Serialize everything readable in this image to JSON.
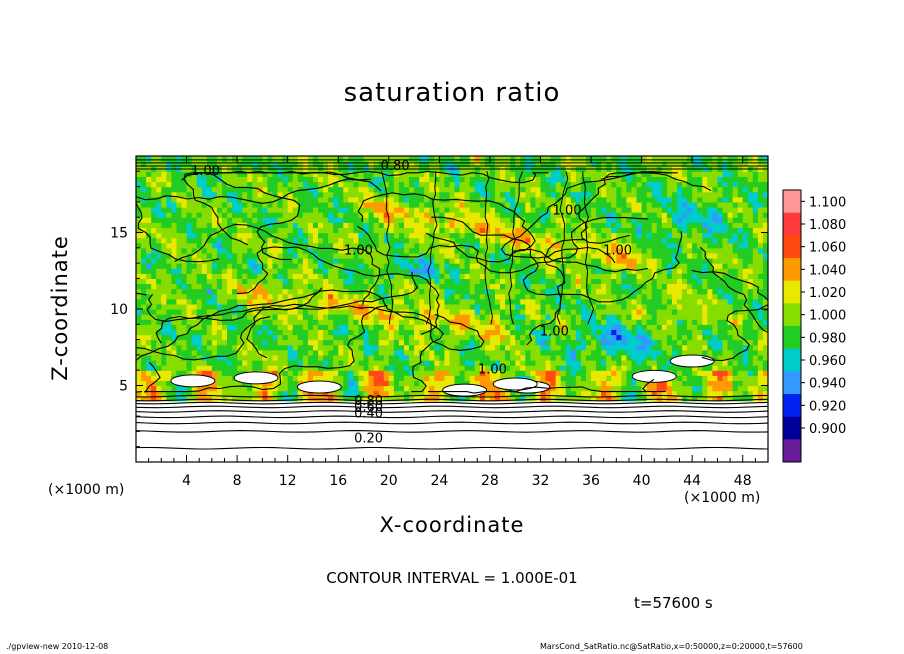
{
  "chart_data": {
    "type": "heatmap",
    "title": "saturation ratio",
    "xlabel": "X-coordinate",
    "ylabel": "Z-coordinate",
    "x_unit": "(×1000 m)",
    "z_unit": "(×1000 m)",
    "xlim": [
      0,
      50
    ],
    "ylim": [
      0,
      20
    ],
    "x_ticks": [
      "4",
      "8",
      "12",
      "16",
      "20",
      "24",
      "28",
      "32",
      "36",
      "40",
      "44",
      "48"
    ],
    "y_ticks": [
      "5",
      "10",
      "15"
    ],
    "colorbar": {
      "levels": [
        "1.100",
        "1.080",
        "1.060",
        "1.040",
        "1.020",
        "1.000",
        "0.980",
        "0.960",
        "0.940",
        "0.920",
        "0.900"
      ],
      "colors": [
        "#ff9999",
        "#ff3a3a",
        "#ff4a10",
        "#ff9900",
        "#e8e800",
        "#88dd00",
        "#22cc22",
        "#00cccc",
        "#3399ff",
        "#0022ee",
        "#000099",
        "#6a1b9a"
      ]
    },
    "contour_labels": [
      "0.80",
      "1.00",
      "1.00",
      "1.00",
      "1.00",
      "1.00",
      "1.00",
      "0.80",
      "0.60",
      "0.40",
      "0.20"
    ],
    "grid": false
  },
  "annotations": {
    "contour_interval": "CONTOUR INTERVAL = 1.000E-01",
    "time": "t=57600 s"
  },
  "footer": {
    "left": "./gpview-new  2010-12-08",
    "right": "MarsCond_SatRatio.nc@SatRatio,x=0:50000,z=0:20000,t=57600"
  }
}
